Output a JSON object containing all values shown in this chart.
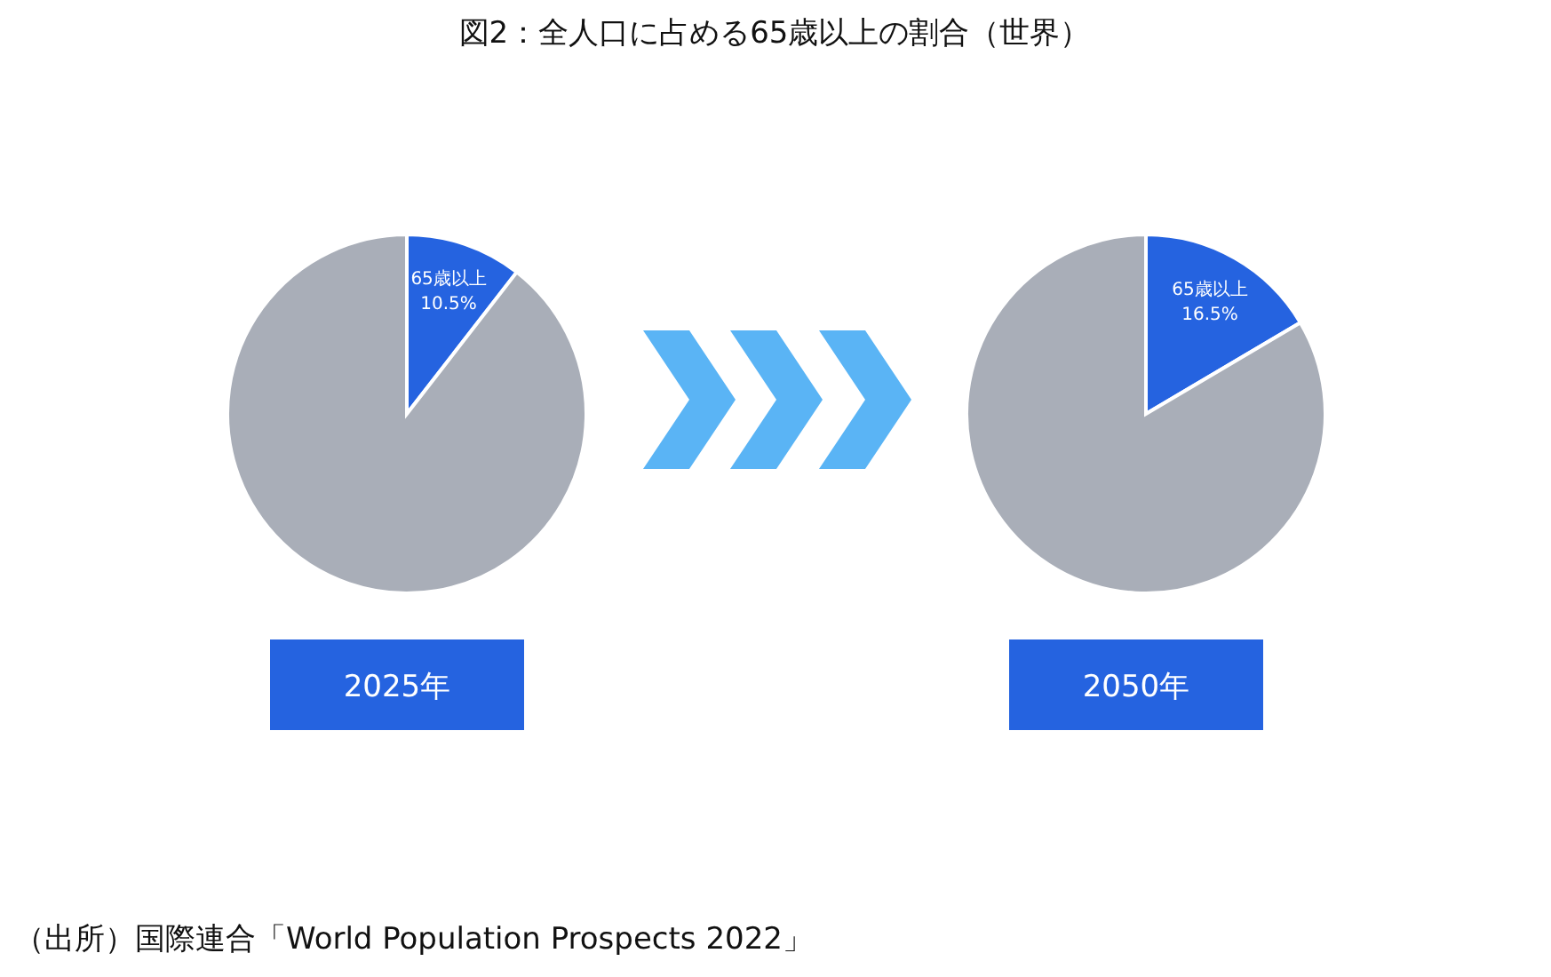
{
  "chart_data": [
    {
      "type": "pie",
      "title": "図2：全人口に占める65歳以上の割合（世界）",
      "xlabel": "2025年",
      "categories": [
        "65歳以上",
        null
      ],
      "values": [
        10.5,
        89.5
      ],
      "colors": [
        "#2563e0",
        "#a9aeb8"
      ],
      "value_labels": [
        "10.5%",
        null
      ],
      "annotations": [
        "（出所）国際連合「World Population Prospects 2022」"
      ]
    },
    {
      "type": "pie",
      "xlabel": "2050年",
      "categories": [
        "65歳以上",
        null
      ],
      "values": [
        16.5,
        83.5
      ],
      "colors": [
        "#2563e0",
        "#a9aeb8"
      ],
      "value_labels": [
        "16.5%",
        null
      ]
    }
  ]
}
